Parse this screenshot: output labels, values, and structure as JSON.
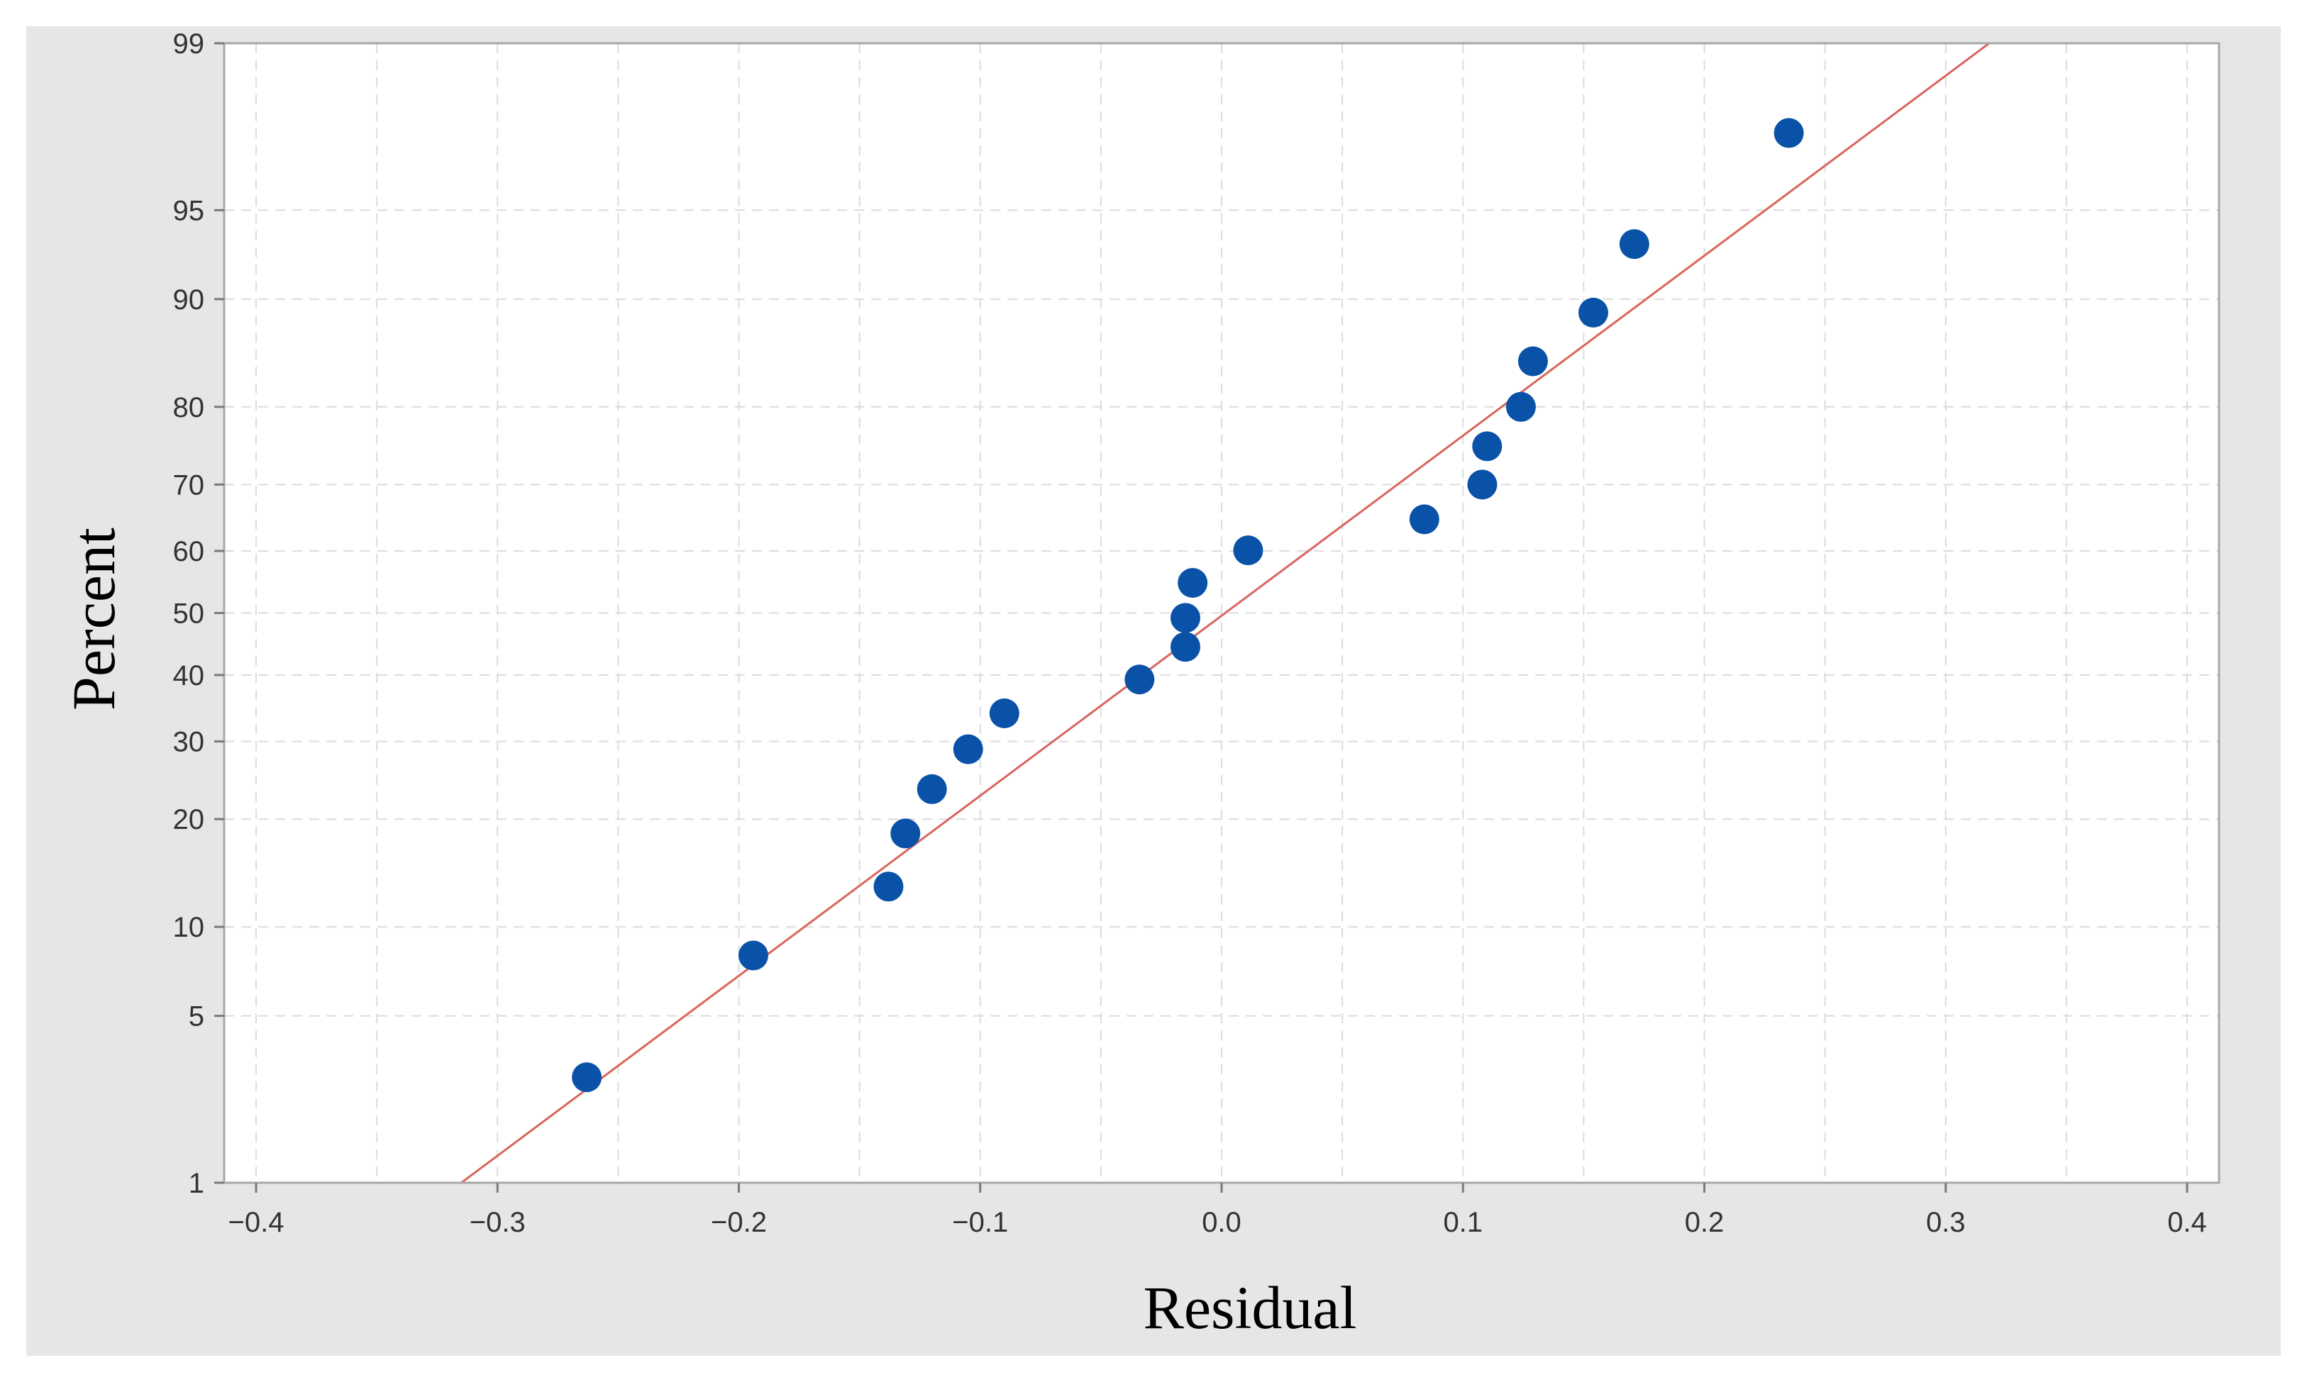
{
  "chart_data": {
    "type": "scatter",
    "title": "",
    "xlabel": "Residual",
    "ylabel": "Percent",
    "xlim": [
      -0.4,
      0.4
    ],
    "ylim": [
      1,
      99
    ],
    "y_scale": "normal-probability",
    "x_ticks": [
      -0.4,
      -0.3,
      -0.2,
      -0.1,
      0.0,
      0.1,
      0.2,
      0.3,
      0.4
    ],
    "x_tick_labels": [
      "−0.4",
      "−0.3",
      "−0.2",
      "−0.1",
      "0.0",
      "0.1",
      "0.2",
      "0.3",
      "0.4"
    ],
    "y_ticks": [
      1,
      5,
      10,
      20,
      30,
      40,
      50,
      60,
      70,
      80,
      90,
      95,
      99
    ],
    "y_tick_labels": [
      "1",
      "5",
      "10",
      "20",
      "30",
      "40",
      "50",
      "60",
      "70",
      "80",
      "90",
      "95",
      "99"
    ],
    "grid": true,
    "grid_style": "dashed",
    "series": [
      {
        "type": "scatter",
        "color": "#0a52a8",
        "points": [
          {
            "x": -0.263,
            "y": 2.9
          },
          {
            "x": -0.194,
            "y": 8.1
          },
          {
            "x": -0.138,
            "y": 13.2
          },
          {
            "x": -0.131,
            "y": 18.4
          },
          {
            "x": -0.12,
            "y": 23.6
          },
          {
            "x": -0.105,
            "y": 28.9
          },
          {
            "x": -0.09,
            "y": 34.1
          },
          {
            "x": -0.034,
            "y": 39.3
          },
          {
            "x": -0.015,
            "y": 44.5
          },
          {
            "x": -0.015,
            "y": 49.2
          },
          {
            "x": -0.012,
            "y": 54.9
          },
          {
            "x": 0.011,
            "y": 60.1
          },
          {
            "x": 0.084,
            "y": 64.9
          },
          {
            "x": 0.108,
            "y": 70.0
          },
          {
            "x": 0.11,
            "y": 75.2
          },
          {
            "x": 0.124,
            "y": 80.0
          },
          {
            "x": 0.129,
            "y": 84.8
          },
          {
            "x": 0.154,
            "y": 89.0
          },
          {
            "x": 0.171,
            "y": 93.4
          },
          {
            "x": 0.235,
            "y": 97.5
          }
        ]
      },
      {
        "type": "line",
        "color": "#d9655c",
        "points": [
          {
            "x": -0.315,
            "y": 1
          },
          {
            "x": 0.318,
            "y": 99
          }
        ]
      }
    ]
  }
}
